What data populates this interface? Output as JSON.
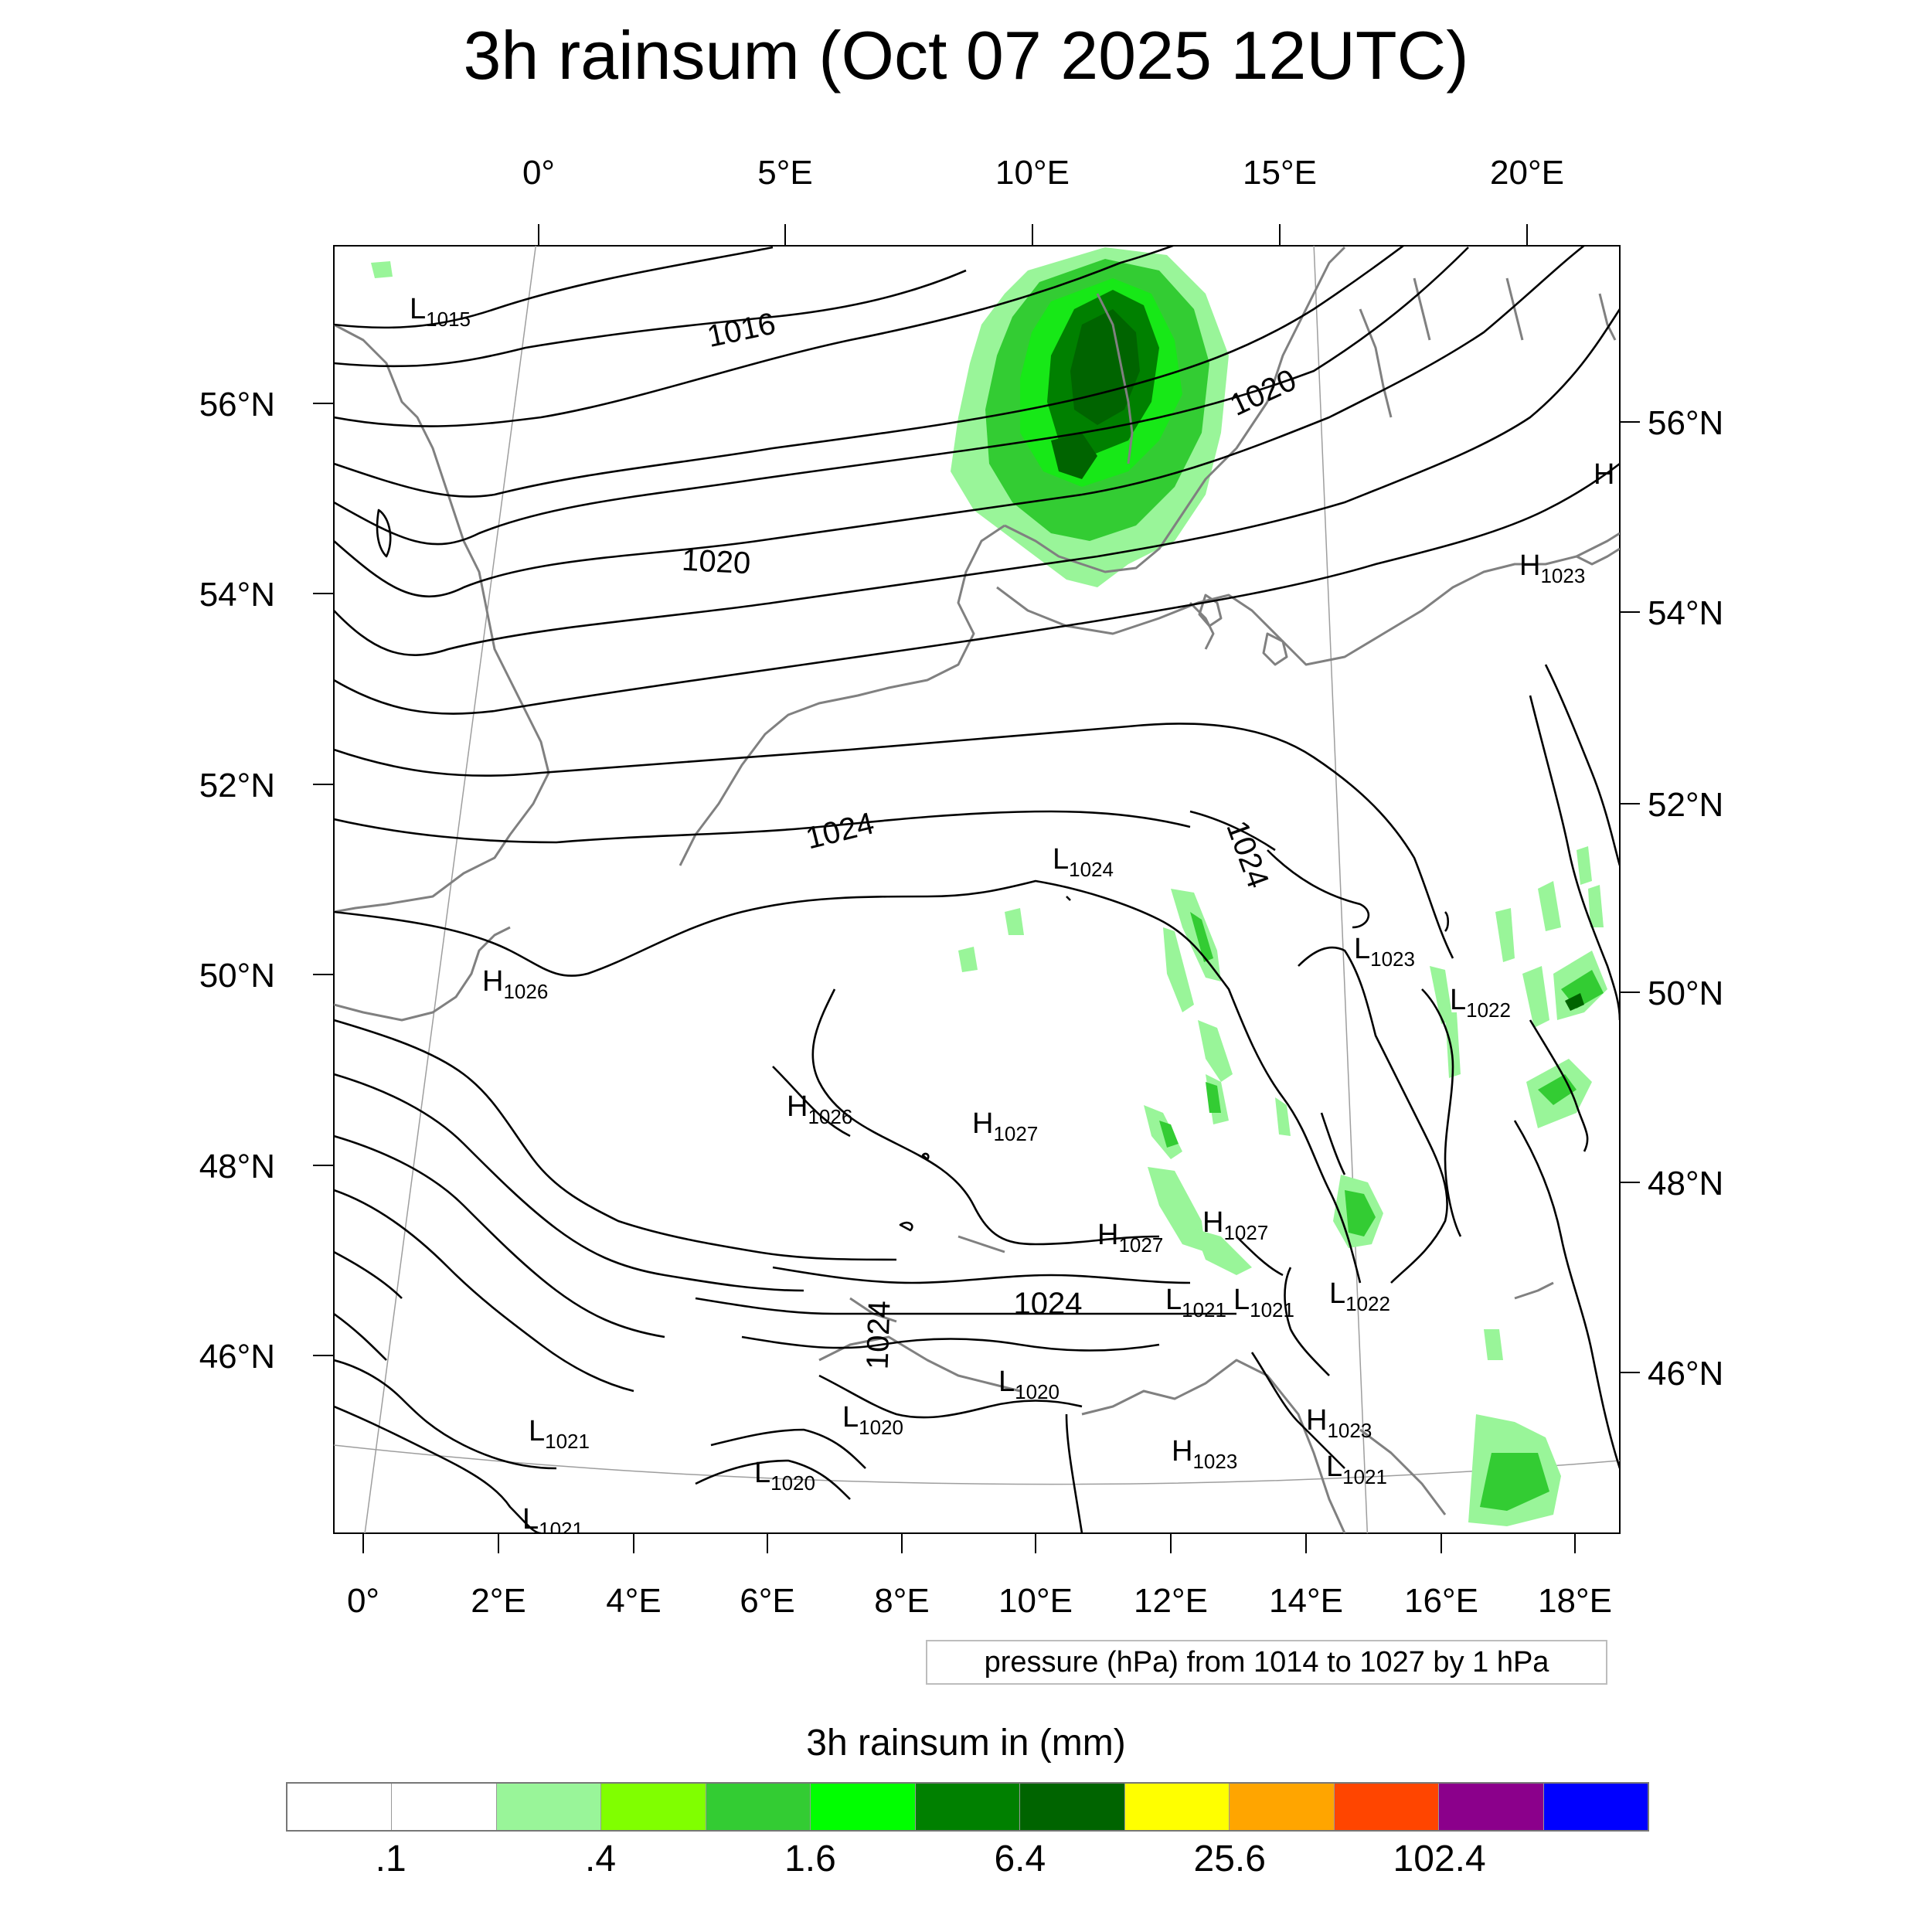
{
  "title": "3h rainsum (Oct 07 2025 12UTC)",
  "top_lon_ticks": [
    "0°",
    "5°E",
    "10°E",
    "15°E",
    "20°E"
  ],
  "bottom_lon_ticks": [
    "0°",
    "2°E",
    "4°E",
    "6°E",
    "8°E",
    "10°E",
    "12°E",
    "14°E",
    "16°E",
    "18°E"
  ],
  "left_lat_ticks": [
    "56°N",
    "54°N",
    "52°N",
    "50°N",
    "48°N",
    "46°N"
  ],
  "right_lat_ticks": [
    "56°N",
    "54°N",
    "52°N",
    "50°N",
    "48°N",
    "46°N"
  ],
  "contour_labels": [
    "1016",
    "1020",
    "1020",
    "1024",
    "1024",
    "1024",
    "1024"
  ],
  "pressure_centers": [
    {
      "type": "L",
      "value": "1015"
    },
    {
      "type": "H",
      "value": "1023"
    },
    {
      "type": "L",
      "value": "1024"
    },
    {
      "type": "L",
      "value": "1023"
    },
    {
      "type": "L",
      "value": "1022"
    },
    {
      "type": "H",
      "value": "1026"
    },
    {
      "type": "H",
      "value": "1026"
    },
    {
      "type": "H",
      "value": "1027"
    },
    {
      "type": "H",
      "value": "1027"
    },
    {
      "type": "H",
      "value": "1027"
    },
    {
      "type": "L",
      "value": "1021"
    },
    {
      "type": "L",
      "value": "1021"
    },
    {
      "type": "L",
      "value": "1022"
    },
    {
      "type": "L",
      "value": "1020"
    },
    {
      "type": "L",
      "value": "1020"
    },
    {
      "type": "L",
      "value": "1021"
    },
    {
      "type": "L",
      "value": "1020"
    },
    {
      "type": "H",
      "value": "1023"
    },
    {
      "type": "H",
      "value": "1023"
    },
    {
      "type": "L",
      "value": "1021"
    },
    {
      "type": "L",
      "value": "1021"
    },
    {
      "type": "H",
      "value": ""
    }
  ],
  "contour_info": "pressure (hPa) from 1014 to 1027 by 1 hPa",
  "colorbar": {
    "title": "3h rainsum in (mm)",
    "colors": [
      "#ffffff",
      "#ffffff",
      "#99f599",
      "#80ff00",
      "#33cc33",
      "#00ff00",
      "#008000",
      "#006400",
      "#ffff00",
      "#ffa500",
      "#ff4500",
      "#8b008b",
      "#0000ff"
    ],
    "labels": [
      ".1",
      ".4",
      "1.6",
      "6.4",
      "25.6",
      "102.4"
    ]
  }
}
